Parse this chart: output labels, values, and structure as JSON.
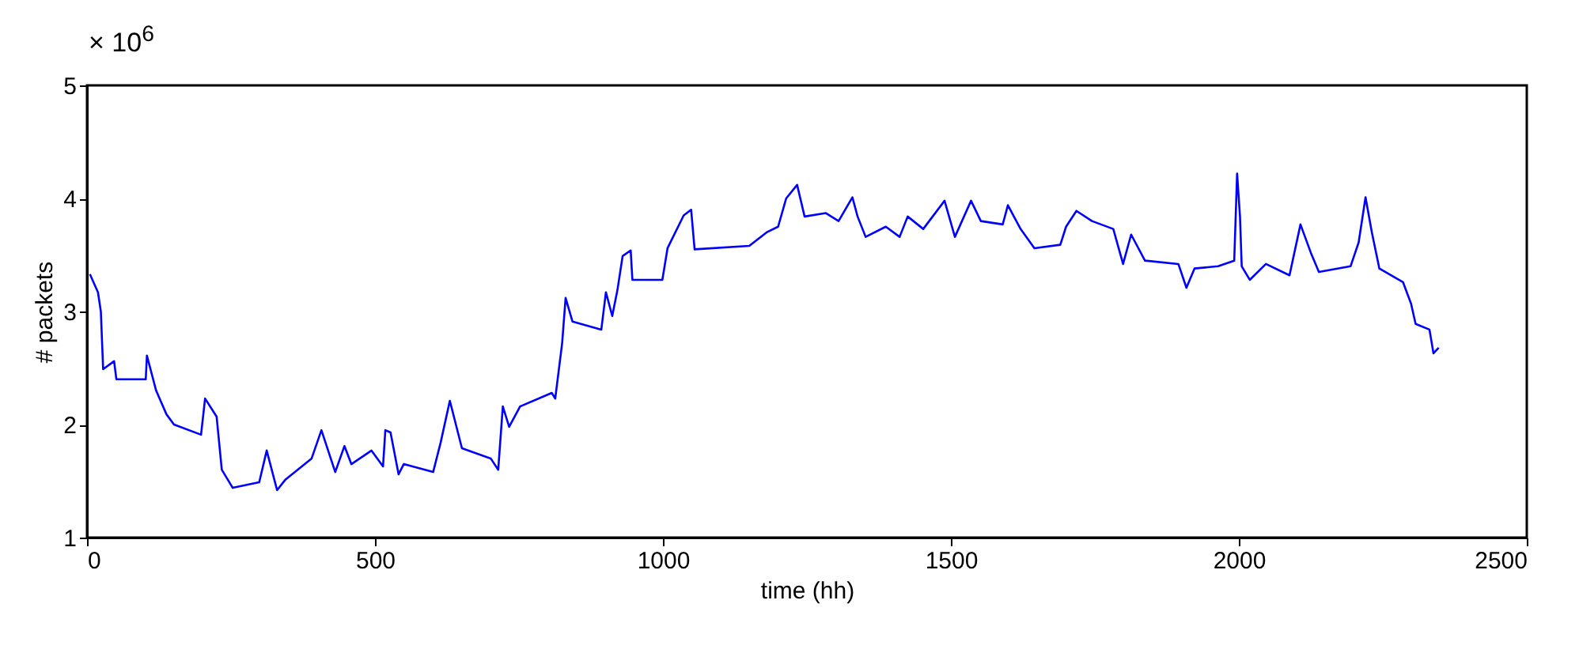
{
  "chart_data": {
    "type": "line",
    "xlabel": "time (hh)",
    "ylabel": "# packets",
    "annotations": [
      "× 10$^{6}$"
    ],
    "xlim": [
      0,
      2500
    ],
    "xticks": [
      0,
      500,
      1000,
      1500,
      2000,
      2500
    ],
    "ylim": [
      1,
      5
    ],
    "yticks": [
      1,
      2,
      3,
      4,
      5
    ],
    "grid": false,
    "legend": false,
    "x": [
      5,
      19,
      24,
      28,
      47,
      51,
      102,
      104,
      120,
      138,
      151,
      198,
      205,
      225,
      234,
      253,
      299,
      312,
      330,
      344,
      390,
      407,
      431,
      447,
      459,
      494,
      514,
      518,
      527,
      541,
      550,
      601,
      614,
      630,
      651,
      701,
      714,
      722,
      733,
      752,
      807,
      813,
      825,
      831,
      843,
      893,
      901,
      912,
      921,
      930,
      944,
      947,
      999,
      1008,
      1036,
      1049,
      1055,
      1150,
      1180,
      1200,
      1214,
      1233,
      1246,
      1283,
      1305,
      1329,
      1338,
      1352,
      1387,
      1411,
      1425,
      1452,
      1489,
      1507,
      1535,
      1552,
      1590,
      1599,
      1621,
      1645,
      1690,
      1700,
      1718,
      1745,
      1782,
      1799,
      1813,
      1837,
      1895,
      1909,
      1923,
      1964,
      1992,
      1997,
      2002,
      2005,
      2019,
      2047,
      2088,
      2107,
      2125,
      2139,
      2194,
      2208,
      2220,
      2231,
      2244,
      2285,
      2299,
      2307,
      2331,
      2338,
      2347
    ],
    "series": [
      {
        "color": "#0000ff",
        "values": [
          3.33,
          3.17,
          3.0,
          2.49,
          2.56,
          2.4,
          2.4,
          2.61,
          2.3,
          2.09,
          2.0,
          1.91,
          2.23,
          2.07,
          1.6,
          1.44,
          1.49,
          1.77,
          1.42,
          1.51,
          1.7,
          1.95,
          1.58,
          1.81,
          1.65,
          1.77,
          1.63,
          1.95,
          1.93,
          1.56,
          1.65,
          1.58,
          1.84,
          2.21,
          1.79,
          1.7,
          1.6,
          2.16,
          1.98,
          2.16,
          2.28,
          2.23,
          2.72,
          3.12,
          2.91,
          2.84,
          3.17,
          2.96,
          3.19,
          3.49,
          3.54,
          3.28,
          3.28,
          3.56,
          3.85,
          3.9,
          3.55,
          3.58,
          3.7,
          3.75,
          4.0,
          4.12,
          3.84,
          3.87,
          3.8,
          4.01,
          3.84,
          3.66,
          3.75,
          3.66,
          3.84,
          3.73,
          3.98,
          3.66,
          3.98,
          3.8,
          3.77,
          3.94,
          3.73,
          3.56,
          3.59,
          3.75,
          3.89,
          3.8,
          3.73,
          3.42,
          3.68,
          3.45,
          3.42,
          3.21,
          3.38,
          3.4,
          3.45,
          4.22,
          3.84,
          3.4,
          3.28,
          3.42,
          3.32,
          3.77,
          3.52,
          3.35,
          3.4,
          3.61,
          4.01,
          3.7,
          3.38,
          3.26,
          3.07,
          2.89,
          2.84,
          2.63,
          2.68
        ]
      }
    ]
  }
}
